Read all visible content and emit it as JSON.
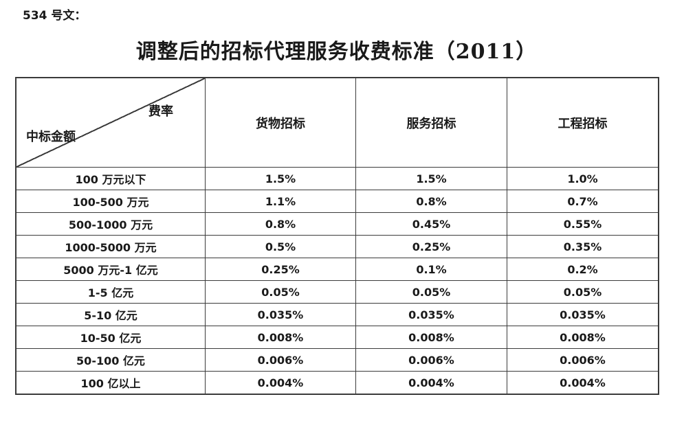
{
  "document": {
    "ref": "534 号文：",
    "title": "调整后的招标代理服务收费标准（2011）"
  },
  "table": {
    "header": {
      "rate_label": "费率",
      "amount_label": "中标金额",
      "columns": [
        "货物招标",
        "服务招标",
        "工程招标"
      ]
    },
    "rows": [
      {
        "amount": "100 万元以下",
        "goods": "1.5%",
        "service": "1.5%",
        "engineering": "1.0%"
      },
      {
        "amount": "100-500 万元",
        "goods": "1.1%",
        "service": "0.8%",
        "engineering": "0.7%"
      },
      {
        "amount": "500-1000 万元",
        "goods": "0.8%",
        "service": "0.45%",
        "engineering": "0.55%"
      },
      {
        "amount": "1000-5000 万元",
        "goods": "0.5%",
        "service": "0.25%",
        "engineering": "0.35%"
      },
      {
        "amount": "5000 万元-1 亿元",
        "goods": "0.25%",
        "service": "0.1%",
        "engineering": "0.2%"
      },
      {
        "amount": "1-5 亿元",
        "goods": "0.05%",
        "service": "0.05%",
        "engineering": "0.05%"
      },
      {
        "amount": "5-10 亿元",
        "goods": "0.035%",
        "service": "0.035%",
        "engineering": "0.035%"
      },
      {
        "amount": "10-50 亿元",
        "goods": "0.008%",
        "service": "0.008%",
        "engineering": "0.008%"
      },
      {
        "amount": "50-100 亿元",
        "goods": "0.006%",
        "service": "0.006%",
        "engineering": "0.006%"
      },
      {
        "amount": "100 亿以上",
        "goods": "0.004%",
        "service": "0.004%",
        "engineering": "0.004%"
      }
    ],
    "colors": {
      "border": "#3a3a3a",
      "text": "#1a1a1a",
      "background": "#ffffff"
    }
  }
}
